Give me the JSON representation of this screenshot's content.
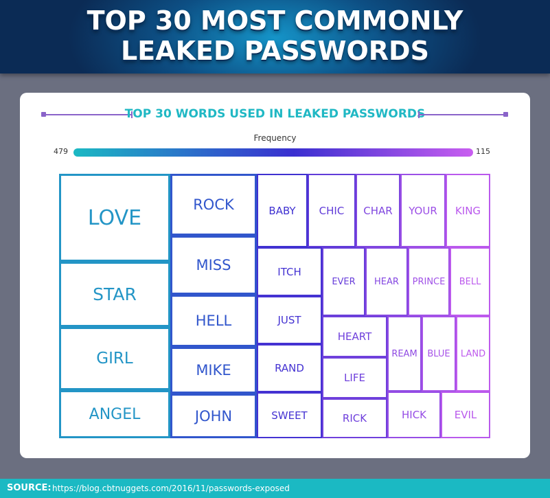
{
  "header": {
    "title_line_1": "TOP 30 MOST COMMONLY",
    "title_line_2": "LEAKED PASSWORDS",
    "colors": {
      "dark": "#0b2b55",
      "bright": "#1594c8"
    }
  },
  "chart_data": {
    "type": "treemap",
    "title": "TOP 30 WORDS USED IN LEAKED PASSWORDS",
    "legend": {
      "label": "Frequency",
      "max_label": "479",
      "min_label": "115",
      "max_color": "#1bb9c3",
      "mid_color": "#3a2fd0",
      "min_color": "#c95ef0"
    },
    "items": [
      {
        "label": "LOVE",
        "value": 479
      },
      {
        "label": "STAR",
        "value": 342
      },
      {
        "label": "GIRL",
        "value": 325
      },
      {
        "label": "ANGEL",
        "value": 230
      },
      {
        "label": "ROCK",
        "value": 252
      },
      {
        "label": "MISS",
        "value": 252
      },
      {
        "label": "HELL",
        "value": 222
      },
      {
        "label": "MIKE",
        "value": 197
      },
      {
        "label": "JOHN",
        "value": 197
      },
      {
        "label": "BABY",
        "value": 143
      },
      {
        "label": "CHIC",
        "value": 142
      },
      {
        "label": "CHAR",
        "value": 132
      },
      {
        "label": "YOUR",
        "value": 132
      },
      {
        "label": "KING",
        "value": 130
      },
      {
        "label": "ITCH",
        "value": 162
      },
      {
        "label": "JUST",
        "value": 160
      },
      {
        "label": "RAND",
        "value": 159
      },
      {
        "label": "SWEET",
        "value": 155
      },
      {
        "label": "EVER",
        "value": 130
      },
      {
        "label": "HEAR",
        "value": 130
      },
      {
        "label": "PRINCE",
        "value": 130
      },
      {
        "label": "BELL",
        "value": 130
      },
      {
        "label": "HEART",
        "value": 124
      },
      {
        "label": "LIFE",
        "value": 124
      },
      {
        "label": "RICK",
        "value": 124
      },
      {
        "label": "REAM",
        "value": 118
      },
      {
        "label": "BLUE",
        "value": 118
      },
      {
        "label": "LAND",
        "value": 118
      },
      {
        "label": "HICK",
        "value": 117
      },
      {
        "label": "EVIL",
        "value": 115
      }
    ]
  },
  "source": {
    "label": "SOURCE:",
    "url": "https://blog.cbtnuggets.com/2016/11/passwords-exposed"
  }
}
